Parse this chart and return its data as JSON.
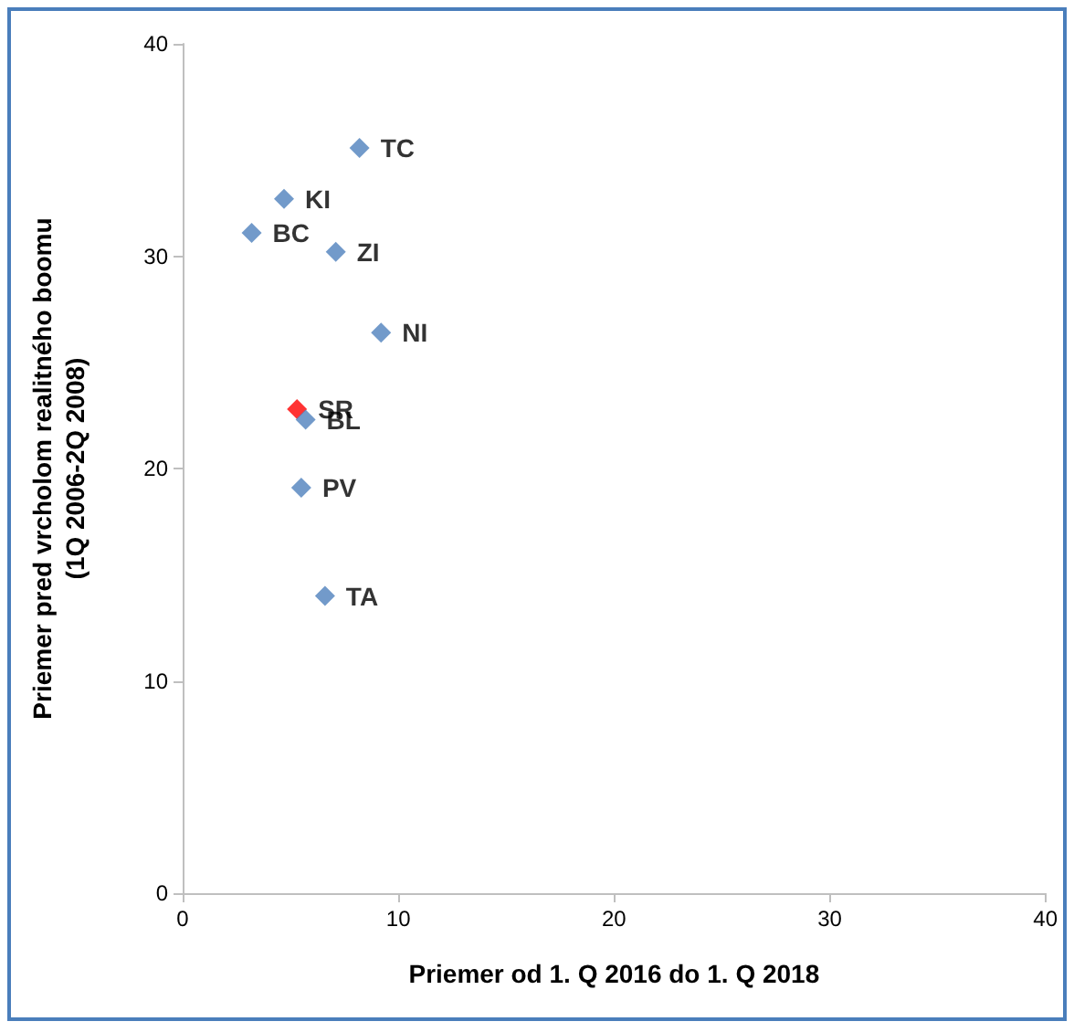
{
  "chart_data": {
    "type": "scatter",
    "xlabel": "Priemer od 1. Q 2016 do 1. Q 2018",
    "ylabel": "Priemer pred vrcholom realitného boomu\n(1Q 2006-2Q 2008)",
    "xlim": [
      0,
      40
    ],
    "xticks": [
      0,
      10,
      20,
      30,
      40
    ],
    "ylim": [
      0,
      40
    ],
    "yticks": [
      0,
      10,
      20,
      30,
      40
    ],
    "grid": false,
    "legend": false,
    "marker": "diamond",
    "series": [
      {
        "name": "TC",
        "color": "#4f81bd",
        "x": [
          8.2
        ],
        "values": [
          35.1
        ]
      },
      {
        "name": "KI",
        "color": "#4f81bd",
        "x": [
          4.7
        ],
        "values": [
          32.7
        ]
      },
      {
        "name": "BC",
        "color": "#4f81bd",
        "x": [
          3.2
        ],
        "values": [
          31.1
        ]
      },
      {
        "name": "ZI",
        "color": "#4f81bd",
        "x": [
          7.1
        ],
        "values": [
          30.2
        ]
      },
      {
        "name": "NI",
        "color": "#4f81bd",
        "x": [
          9.2
        ],
        "values": [
          26.4
        ]
      },
      {
        "name": "SR",
        "color": "#ff0000",
        "x": [
          5.3
        ],
        "values": [
          22.8
        ]
      },
      {
        "name": "BL",
        "color": "#4f81bd",
        "x": [
          5.7
        ],
        "values": [
          22.3
        ]
      },
      {
        "name": "PV",
        "color": "#4f81bd",
        "x": [
          5.5
        ],
        "values": [
          19.1
        ]
      },
      {
        "name": "TA",
        "color": "#4f81bd",
        "x": [
          6.6
        ],
        "values": [
          14.0
        ]
      }
    ]
  }
}
